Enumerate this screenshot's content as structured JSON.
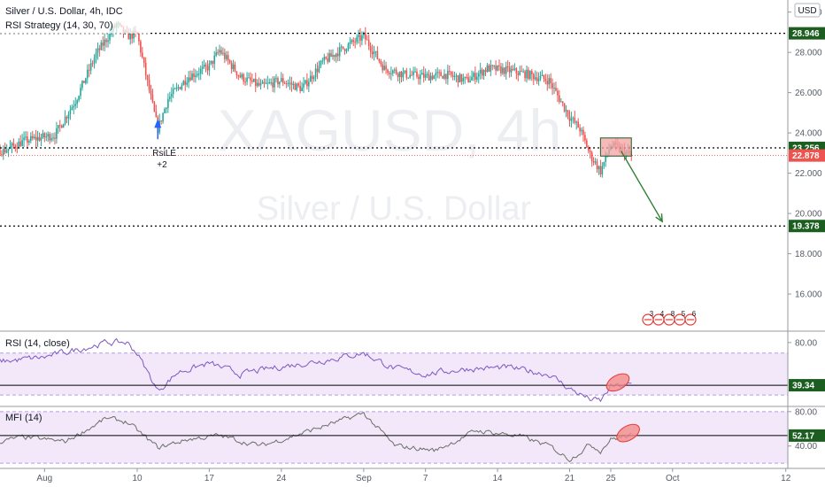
{
  "header": {
    "title": "Silver / U.S. Dollar, 4h, IDC",
    "strategy": "RSI Strategy (14, 30, 70)",
    "rsi_label": "RSI (14, close)",
    "mfi_label": "MFI (14)",
    "currency": "USD"
  },
  "watermark": {
    "symbol": "XAGUSD, 4h",
    "name": "Silver / U.S. Dollar"
  },
  "signal": {
    "label": "RsiLE",
    "qty": "+2"
  },
  "events": [
    "3",
    "4",
    "8",
    "5",
    "6"
  ],
  "colors": {
    "bull": "#26a69a",
    "bear": "#ef5350",
    "level": "#1b5e20",
    "current": "#ef5350",
    "osc_line": "#7e57c2",
    "mfi_line": "#6a6f65",
    "band": "#e8d6f6"
  },
  "chart_data": [
    {
      "type": "candlestick",
      "title": "Silver / U.S. Dollar, 4h, IDC",
      "ylim": [
        14.2,
        30.6
      ],
      "yticks": [
        "30.000",
        "28.000",
        "26.000",
        "24.000",
        "22.000",
        "20.000",
        "18.000",
        "16.000"
      ],
      "xticks": [
        {
          "label": "Aug",
          "date": "2020-08-01"
        },
        {
          "label": "10",
          "date": "2020-08-10"
        },
        {
          "label": "17",
          "date": "2020-08-17"
        },
        {
          "label": "24",
          "date": "2020-08-24"
        },
        {
          "label": "Sep",
          "date": "2020-09-01"
        },
        {
          "label": "7",
          "date": "2020-09-07"
        },
        {
          "label": "14",
          "date": "2020-09-14"
        },
        {
          "label": "21",
          "date": "2020-09-21"
        },
        {
          "label": "25",
          "date": "2020-09-25"
        },
        {
          "label": "Oct",
          "date": "2020-10-01"
        },
        {
          "label": "12",
          "date": "2020-10-12"
        }
      ],
      "price_path": [
        {
          "date": "2020-07-22",
          "close": 23.4
        },
        {
          "date": "2020-07-24",
          "close": 22.8
        },
        {
          "date": "2020-07-26",
          "close": 23.4
        },
        {
          "date": "2020-07-28",
          "close": 23.1
        },
        {
          "date": "2020-07-30",
          "close": 23.6
        },
        {
          "date": "2020-08-02",
          "close": 23.9
        },
        {
          "date": "2020-08-04",
          "close": 25.6
        },
        {
          "date": "2020-08-06",
          "close": 27.9
        },
        {
          "date": "2020-08-08",
          "close": 29.4
        },
        {
          "date": "2020-08-09",
          "close": 28.8
        },
        {
          "date": "2020-08-10",
          "close": 28.9
        },
        {
          "date": "2020-08-11",
          "close": 26.5
        },
        {
          "date": "2020-08-12",
          "close": 24.2
        },
        {
          "date": "2020-08-13",
          "close": 25.7
        },
        {
          "date": "2020-08-15",
          "close": 26.8
        },
        {
          "date": "2020-08-17",
          "close": 27.3
        },
        {
          "date": "2020-08-18",
          "close": 28.1
        },
        {
          "date": "2020-08-20",
          "close": 26.8
        },
        {
          "date": "2020-08-22",
          "close": 26.3
        },
        {
          "date": "2020-08-24",
          "close": 26.6
        },
        {
          "date": "2020-08-26",
          "close": 26.2
        },
        {
          "date": "2020-08-28",
          "close": 27.5
        },
        {
          "date": "2020-08-30",
          "close": 28.2
        },
        {
          "date": "2020-09-01",
          "close": 28.8
        },
        {
          "date": "2020-09-03",
          "close": 27.2
        },
        {
          "date": "2020-09-05",
          "close": 26.9
        },
        {
          "date": "2020-09-07",
          "close": 26.8
        },
        {
          "date": "2020-09-09",
          "close": 26.9
        },
        {
          "date": "2020-09-11",
          "close": 26.6
        },
        {
          "date": "2020-09-13",
          "close": 27.2
        },
        {
          "date": "2020-09-15",
          "close": 27.1
        },
        {
          "date": "2020-09-17",
          "close": 26.9
        },
        {
          "date": "2020-09-19",
          "close": 26.6
        },
        {
          "date": "2020-09-21",
          "close": 24.8
        },
        {
          "date": "2020-09-22",
          "close": 24.2
        },
        {
          "date": "2020-09-23",
          "close": 22.9
        },
        {
          "date": "2020-09-24",
          "close": 22.1
        },
        {
          "date": "2020-09-25",
          "close": 23.4
        },
        {
          "date": "2020-09-27",
          "close": 22.88
        }
      ],
      "levels": [
        {
          "name": "resistance",
          "value": 28.946,
          "label": "28.946"
        },
        {
          "name": "support",
          "value": 23.256,
          "label": "23.256"
        },
        {
          "name": "target",
          "value": 19.378,
          "label": "19.378"
        }
      ],
      "last_price": {
        "value": 22.878,
        "label": "22.878"
      },
      "annotations": {
        "zone": {
          "date_from": "2020-09-24",
          "date_to": "2020-09-27",
          "y_from": 22.85,
          "y_to": 23.75
        },
        "arrow": {
          "from": {
            "date": "2020-09-26",
            "y": 23.1
          },
          "to": {
            "date": "2020-09-30",
            "y": 19.6
          }
        },
        "signal_date": "2020-08-12"
      }
    },
    {
      "type": "line",
      "title": "RSI (14, close)",
      "ylim": [
        20,
        90
      ],
      "yticks": [
        "80.00"
      ],
      "bands": {
        "upper": 70,
        "lower": 30
      },
      "last": {
        "value": 39.34,
        "label": "39.34"
      },
      "series": [
        {
          "values": [
            {
              "date": "2020-07-22",
              "value": 68
            },
            {
              "date": "2020-07-25",
              "value": 55
            },
            {
              "date": "2020-07-28",
              "value": 62
            },
            {
              "date": "2020-08-01",
              "value": 66
            },
            {
              "date": "2020-08-04",
              "value": 73
            },
            {
              "date": "2020-08-07",
              "value": 80
            },
            {
              "date": "2020-08-09",
              "value": 80
            },
            {
              "date": "2020-08-10",
              "value": 70
            },
            {
              "date": "2020-08-12",
              "value": 34
            },
            {
              "date": "2020-08-14",
              "value": 52
            },
            {
              "date": "2020-08-17",
              "value": 60
            },
            {
              "date": "2020-08-20",
              "value": 50
            },
            {
              "date": "2020-08-24",
              "value": 57
            },
            {
              "date": "2020-08-28",
              "value": 63
            },
            {
              "date": "2020-09-01",
              "value": 70
            },
            {
              "date": "2020-09-04",
              "value": 55
            },
            {
              "date": "2020-09-07",
              "value": 50
            },
            {
              "date": "2020-09-11",
              "value": 55
            },
            {
              "date": "2020-09-15",
              "value": 56
            },
            {
              "date": "2020-09-19",
              "value": 50
            },
            {
              "date": "2020-09-21",
              "value": 36
            },
            {
              "date": "2020-09-23",
              "value": 26
            },
            {
              "date": "2020-09-24",
              "value": 24
            },
            {
              "date": "2020-09-25",
              "value": 38
            },
            {
              "date": "2020-09-27",
              "value": 39.34
            }
          ]
        }
      ],
      "highlight": {
        "date": "2020-09-25",
        "value": 42
      }
    },
    {
      "type": "line",
      "title": "MFI (14)",
      "ylim": [
        15,
        85
      ],
      "yticks": [
        "80.00",
        "40.00"
      ],
      "bands": {
        "upper": 80,
        "lower": 20
      },
      "last": {
        "value": 52.17,
        "label": "52.17"
      },
      "series": [
        {
          "values": [
            {
              "date": "2020-07-22",
              "value": 55
            },
            {
              "date": "2020-07-26",
              "value": 42
            },
            {
              "date": "2020-07-30",
              "value": 50
            },
            {
              "date": "2020-08-03",
              "value": 45
            },
            {
              "date": "2020-08-07",
              "value": 72
            },
            {
              "date": "2020-08-09",
              "value": 68
            },
            {
              "date": "2020-08-12",
              "value": 38
            },
            {
              "date": "2020-08-15",
              "value": 48
            },
            {
              "date": "2020-08-18",
              "value": 52
            },
            {
              "date": "2020-08-22",
              "value": 40
            },
            {
              "date": "2020-08-26",
              "value": 55
            },
            {
              "date": "2020-08-30",
              "value": 70
            },
            {
              "date": "2020-09-01",
              "value": 78
            },
            {
              "date": "2020-09-04",
              "value": 40
            },
            {
              "date": "2020-09-08",
              "value": 35
            },
            {
              "date": "2020-09-12",
              "value": 58
            },
            {
              "date": "2020-09-16",
              "value": 52
            },
            {
              "date": "2020-09-19",
              "value": 40
            },
            {
              "date": "2020-09-21",
              "value": 25
            },
            {
              "date": "2020-09-23",
              "value": 42
            },
            {
              "date": "2020-09-24",
              "value": 35
            },
            {
              "date": "2020-09-25",
              "value": 48
            },
            {
              "date": "2020-09-27",
              "value": 52.17
            }
          ]
        }
      ],
      "highlight": {
        "date": "2020-09-26",
        "value": 55
      }
    }
  ]
}
